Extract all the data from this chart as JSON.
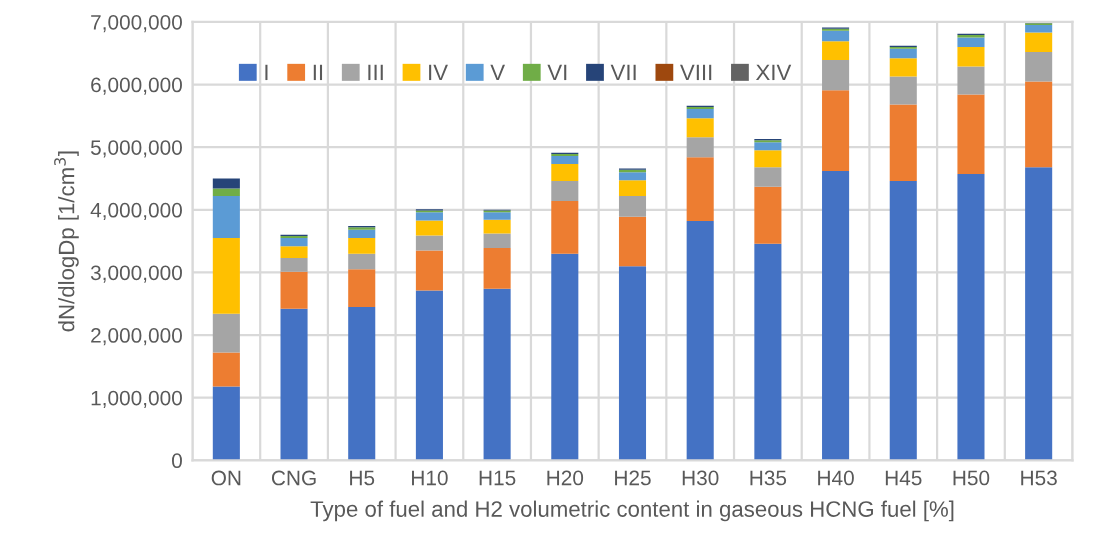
{
  "chart_data": {
    "type": "bar",
    "stacked": true,
    "xlabel": "Type of fuel and H2 volumetric content in gaseous HCNG fuel [%]",
    "ylabel": "dN/dlogDp [1/cm$^{3}$]",
    "categories": [
      "ON",
      "CNG",
      "H5",
      "H10",
      "H15",
      "H20",
      "H25",
      "H30",
      "H35",
      "H40",
      "H45",
      "H50",
      "H53"
    ],
    "series": [
      {
        "name": "I",
        "color": "#4472c4",
        "values": [
          1180000,
          2420000,
          2450000,
          2710000,
          2740000,
          3300000,
          3100000,
          3820000,
          3460000,
          4620000,
          4460000,
          4570000,
          4680000
        ]
      },
      {
        "name": "II",
        "color": "#ed7d31",
        "values": [
          540000,
          590000,
          600000,
          640000,
          650000,
          840000,
          790000,
          1020000,
          910000,
          1290000,
          1220000,
          1270000,
          1370000
        ]
      },
      {
        "name": "III",
        "color": "#a5a5a5",
        "values": [
          620000,
          220000,
          250000,
          240000,
          230000,
          320000,
          330000,
          320000,
          310000,
          480000,
          450000,
          450000,
          470000
        ]
      },
      {
        "name": "IV",
        "color": "#ffc000",
        "values": [
          1210000,
          190000,
          250000,
          240000,
          220000,
          270000,
          250000,
          300000,
          270000,
          300000,
          290000,
          310000,
          310000
        ]
      },
      {
        "name": "V",
        "color": "#5b9bd5",
        "values": [
          670000,
          130000,
          130000,
          130000,
          120000,
          130000,
          130000,
          150000,
          130000,
          170000,
          150000,
          150000,
          120000
        ]
      },
      {
        "name": "VI",
        "color": "#70ad47",
        "values": [
          120000,
          30000,
          40000,
          30000,
          30000,
          30000,
          40000,
          30000,
          30000,
          30000,
          30000,
          40000,
          30000
        ]
      },
      {
        "name": "VII",
        "color": "#264478",
        "values": [
          160000,
          20000,
          20000,
          20000,
          10000,
          20000,
          20000,
          20000,
          20000,
          20000,
          20000,
          20000,
          10000
        ]
      },
      {
        "name": "VIII",
        "color": "#9e480e",
        "values": [
          0,
          0,
          0,
          0,
          0,
          0,
          0,
          0,
          0,
          0,
          0,
          0,
          0
        ]
      },
      {
        "name": "XIV",
        "color": "#636363",
        "values": [
          0,
          0,
          0,
          0,
          0,
          0,
          0,
          0,
          0,
          0,
          0,
          0,
          0
        ]
      }
    ],
    "ylim": [
      0,
      7000000
    ],
    "yticks": [
      {
        "value": 0,
        "label": "0"
      },
      {
        "value": 1000000,
        "label": "1,000,000"
      },
      {
        "value": 2000000,
        "label": "2,000,000"
      },
      {
        "value": 3000000,
        "label": "3,000,000"
      },
      {
        "value": 4000000,
        "label": "4,000,000"
      },
      {
        "value": 5000000,
        "label": "5,000,000"
      },
      {
        "value": 6000000,
        "label": "6,000,000"
      },
      {
        "value": 7000000,
        "label": "7,000,000"
      }
    ],
    "grid": true,
    "legend": "top"
  }
}
